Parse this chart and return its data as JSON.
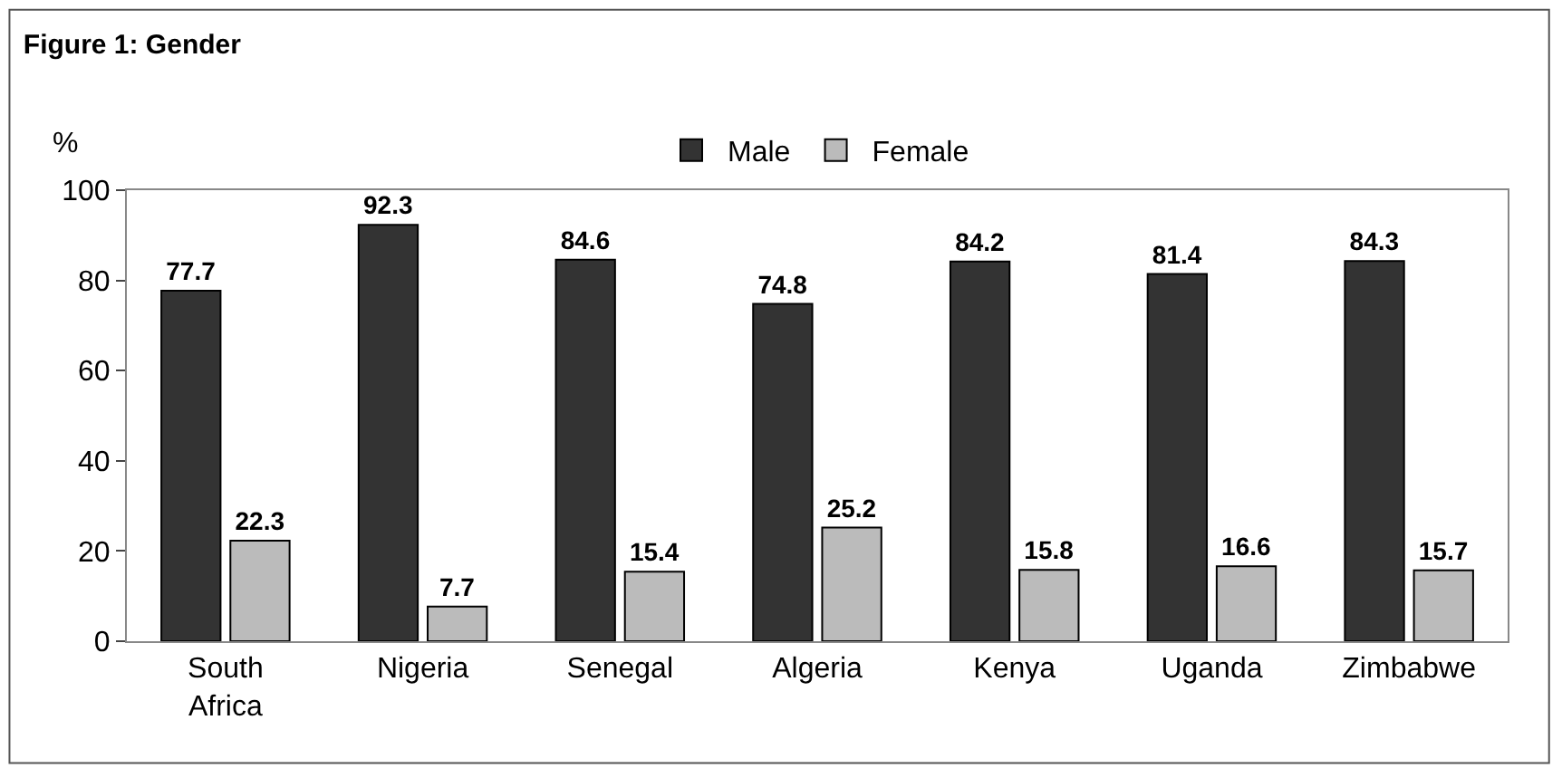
{
  "chart_data": {
    "type": "bar",
    "title": "Figure 1: Gender",
    "ylabel": "%",
    "categories": [
      "South Africa",
      "Nigeria",
      "Senegal",
      "Algeria",
      "Kenya",
      "Uganda",
      "Zimbabwe"
    ],
    "series": [
      {
        "name": "Male",
        "color": "#333333",
        "values": [
          77.7,
          92.3,
          84.6,
          74.8,
          84.2,
          81.4,
          84.3
        ]
      },
      {
        "name": "Female",
        "color": "#bbbbbb",
        "values": [
          22.3,
          7.7,
          15.4,
          25.2,
          15.8,
          16.6,
          15.7
        ]
      }
    ],
    "ylim": [
      0,
      100
    ],
    "yticks": [
      0,
      20,
      40,
      60,
      80,
      100
    ],
    "grid": false,
    "legend": "top",
    "data_labels": true
  }
}
